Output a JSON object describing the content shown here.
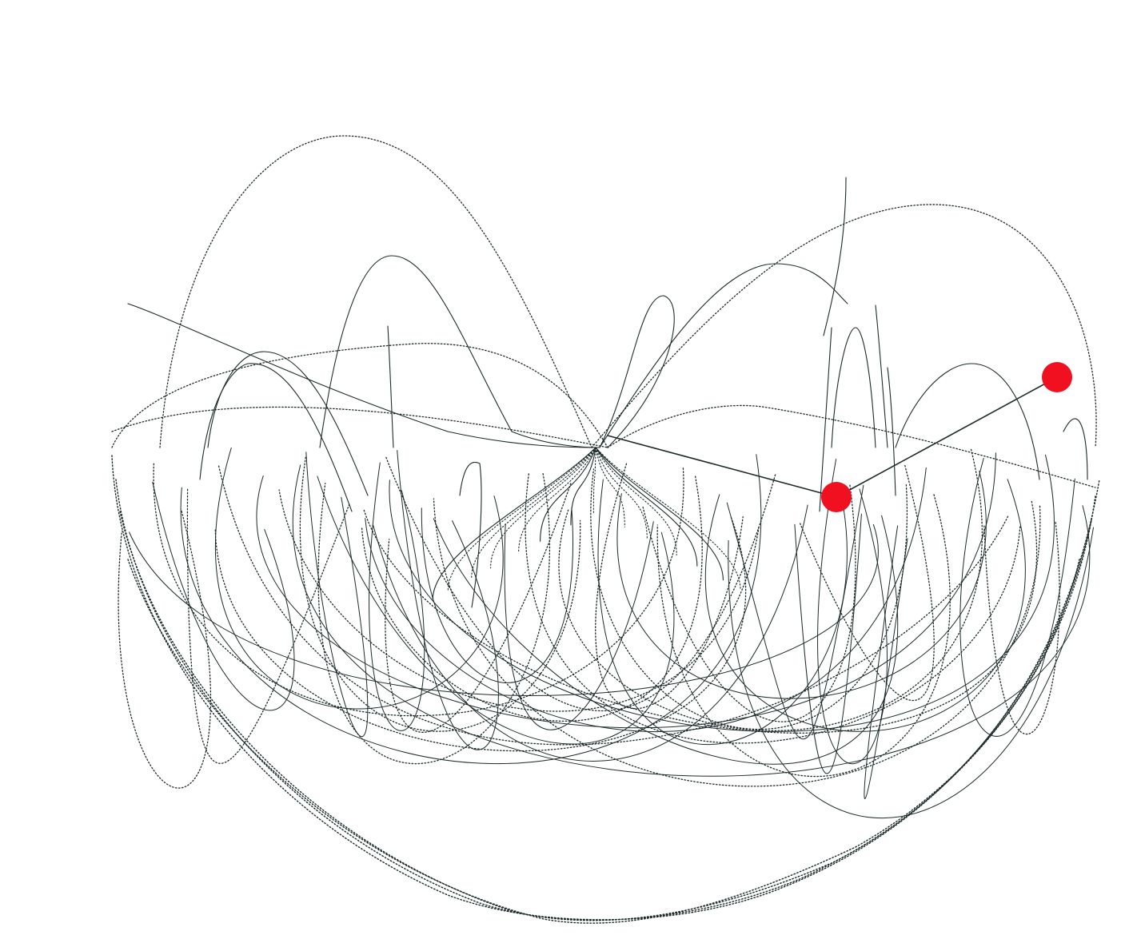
{
  "canvas": {
    "background": "#ffffff",
    "trace_color": "#1e2b2b",
    "arm_color": "#1e2b2b",
    "bob_color": "#f01020"
  },
  "figure": {
    "description_name": "double-pendulum-trace",
    "bobs": [
      "inner-bob",
      "outer-bob"
    ]
  }
}
